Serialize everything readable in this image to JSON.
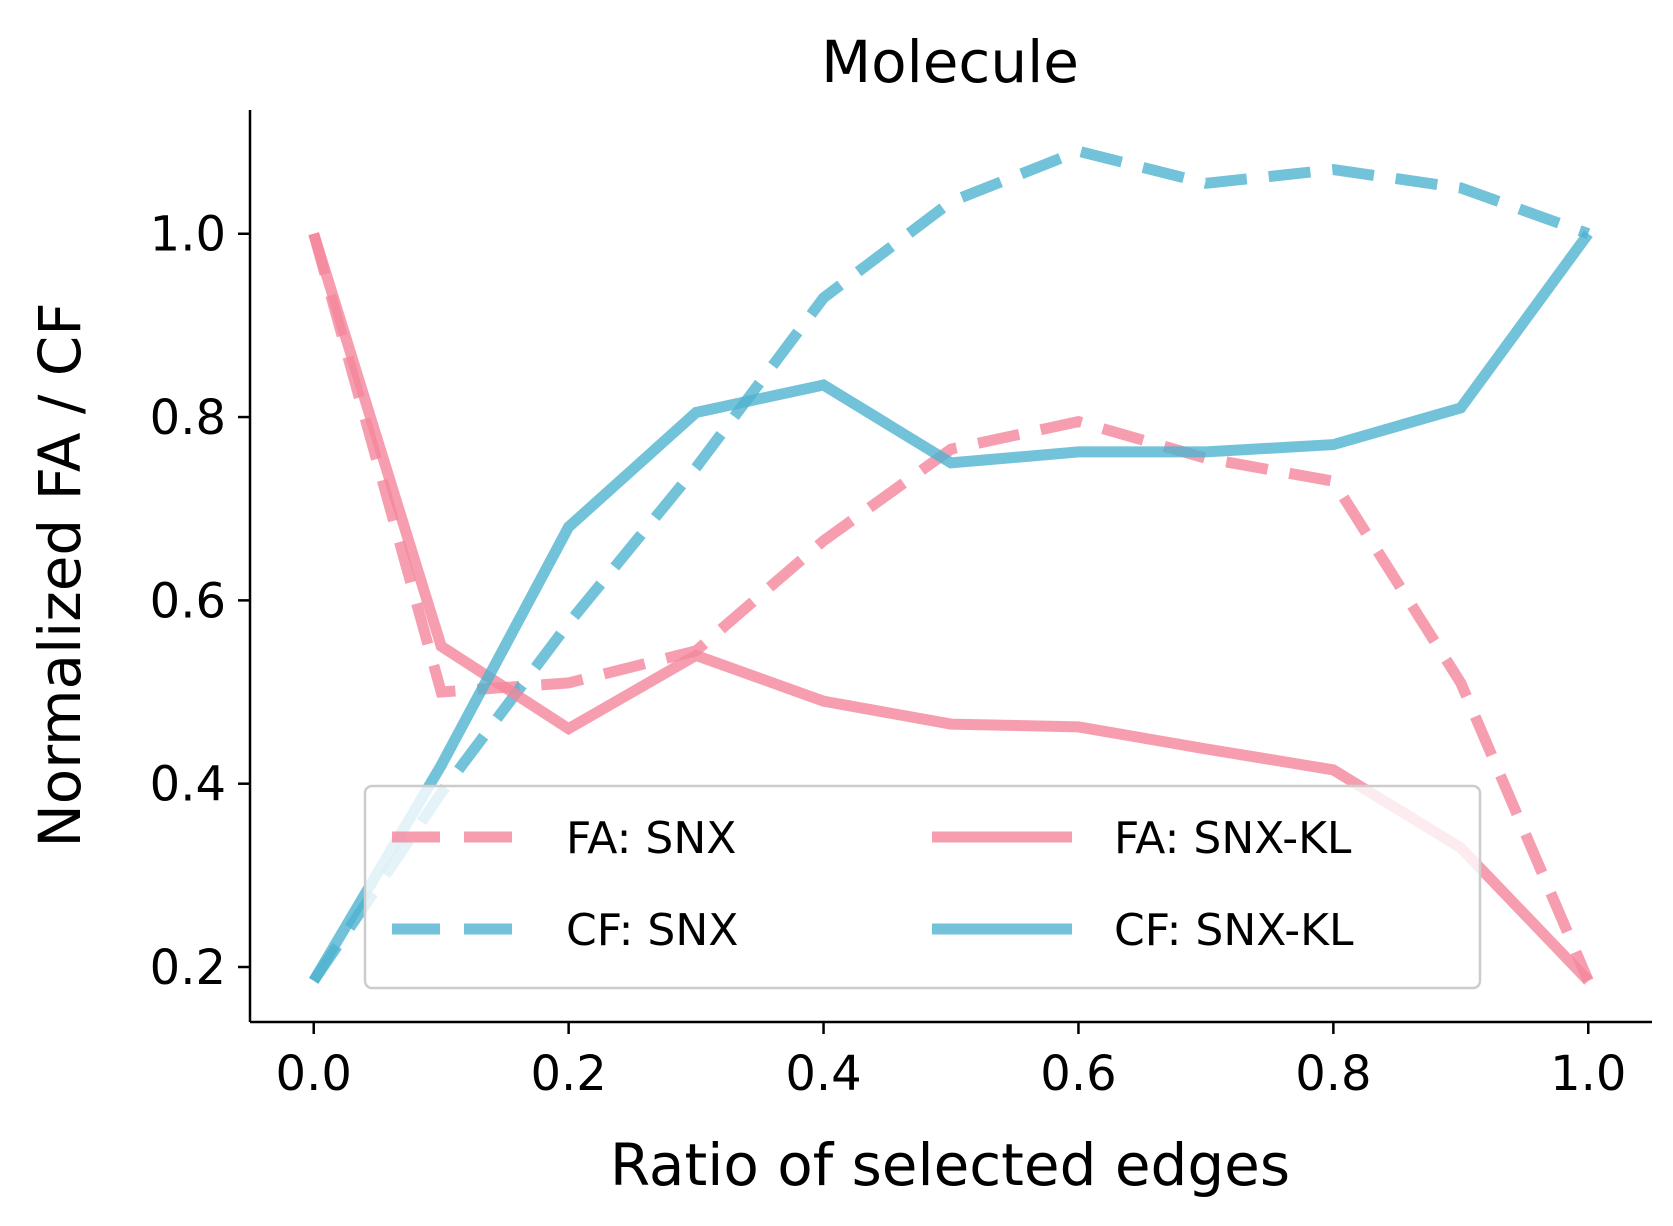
{
  "chart_data": {
    "type": "line",
    "title": "Molecule",
    "xlabel": "Ratio of selected edges",
    "ylabel": "Normalized FA / CF",
    "xlim": [
      -0.05,
      1.05
    ],
    "ylim": [
      0.14,
      1.135
    ],
    "xticks": [
      0.0,
      0.2,
      0.4,
      0.6,
      0.8,
      1.0
    ],
    "xtick_labels": [
      "0.0",
      "0.2",
      "0.4",
      "0.6",
      "0.8",
      "1.0"
    ],
    "yticks": [
      0.2,
      0.4,
      0.6,
      0.8,
      1.0
    ],
    "ytick_labels": [
      "0.2",
      "0.4",
      "0.6",
      "0.8",
      "1.0"
    ],
    "x": [
      0.0,
      0.1,
      0.2,
      0.3,
      0.4,
      0.5,
      0.6,
      0.7,
      0.8,
      0.9,
      1.0
    ],
    "grid": false,
    "legend_position": "lower-center",
    "series": [
      {
        "name": "FA: SNX",
        "key": "fa-snx",
        "color": "#f4869b",
        "style": "dashed",
        "values": [
          1.0,
          0.5,
          0.51,
          0.545,
          0.665,
          0.765,
          0.795,
          0.755,
          0.73,
          0.51,
          0.185
        ]
      },
      {
        "name": "CF: SNX",
        "key": "cf-snx",
        "color": "#4fb3cf",
        "style": "dashed",
        "values": [
          0.185,
          0.39,
          0.575,
          0.745,
          0.93,
          1.035,
          1.09,
          1.055,
          1.07,
          1.05,
          1.0
        ]
      },
      {
        "name": "FA: SNX-KL",
        "key": "fa-snx-kl",
        "color": "#f4869b",
        "style": "solid",
        "values": [
          1.0,
          0.55,
          0.46,
          0.54,
          0.49,
          0.465,
          0.462,
          0.438,
          0.415,
          0.33,
          0.185
        ]
      },
      {
        "name": "CF: SNX-KL",
        "key": "cf-snx-kl",
        "color": "#4fb3cf",
        "style": "solid",
        "values": [
          0.185,
          0.42,
          0.68,
          0.805,
          0.835,
          0.75,
          0.762,
          0.762,
          0.77,
          0.81,
          1.0
        ]
      }
    ]
  }
}
